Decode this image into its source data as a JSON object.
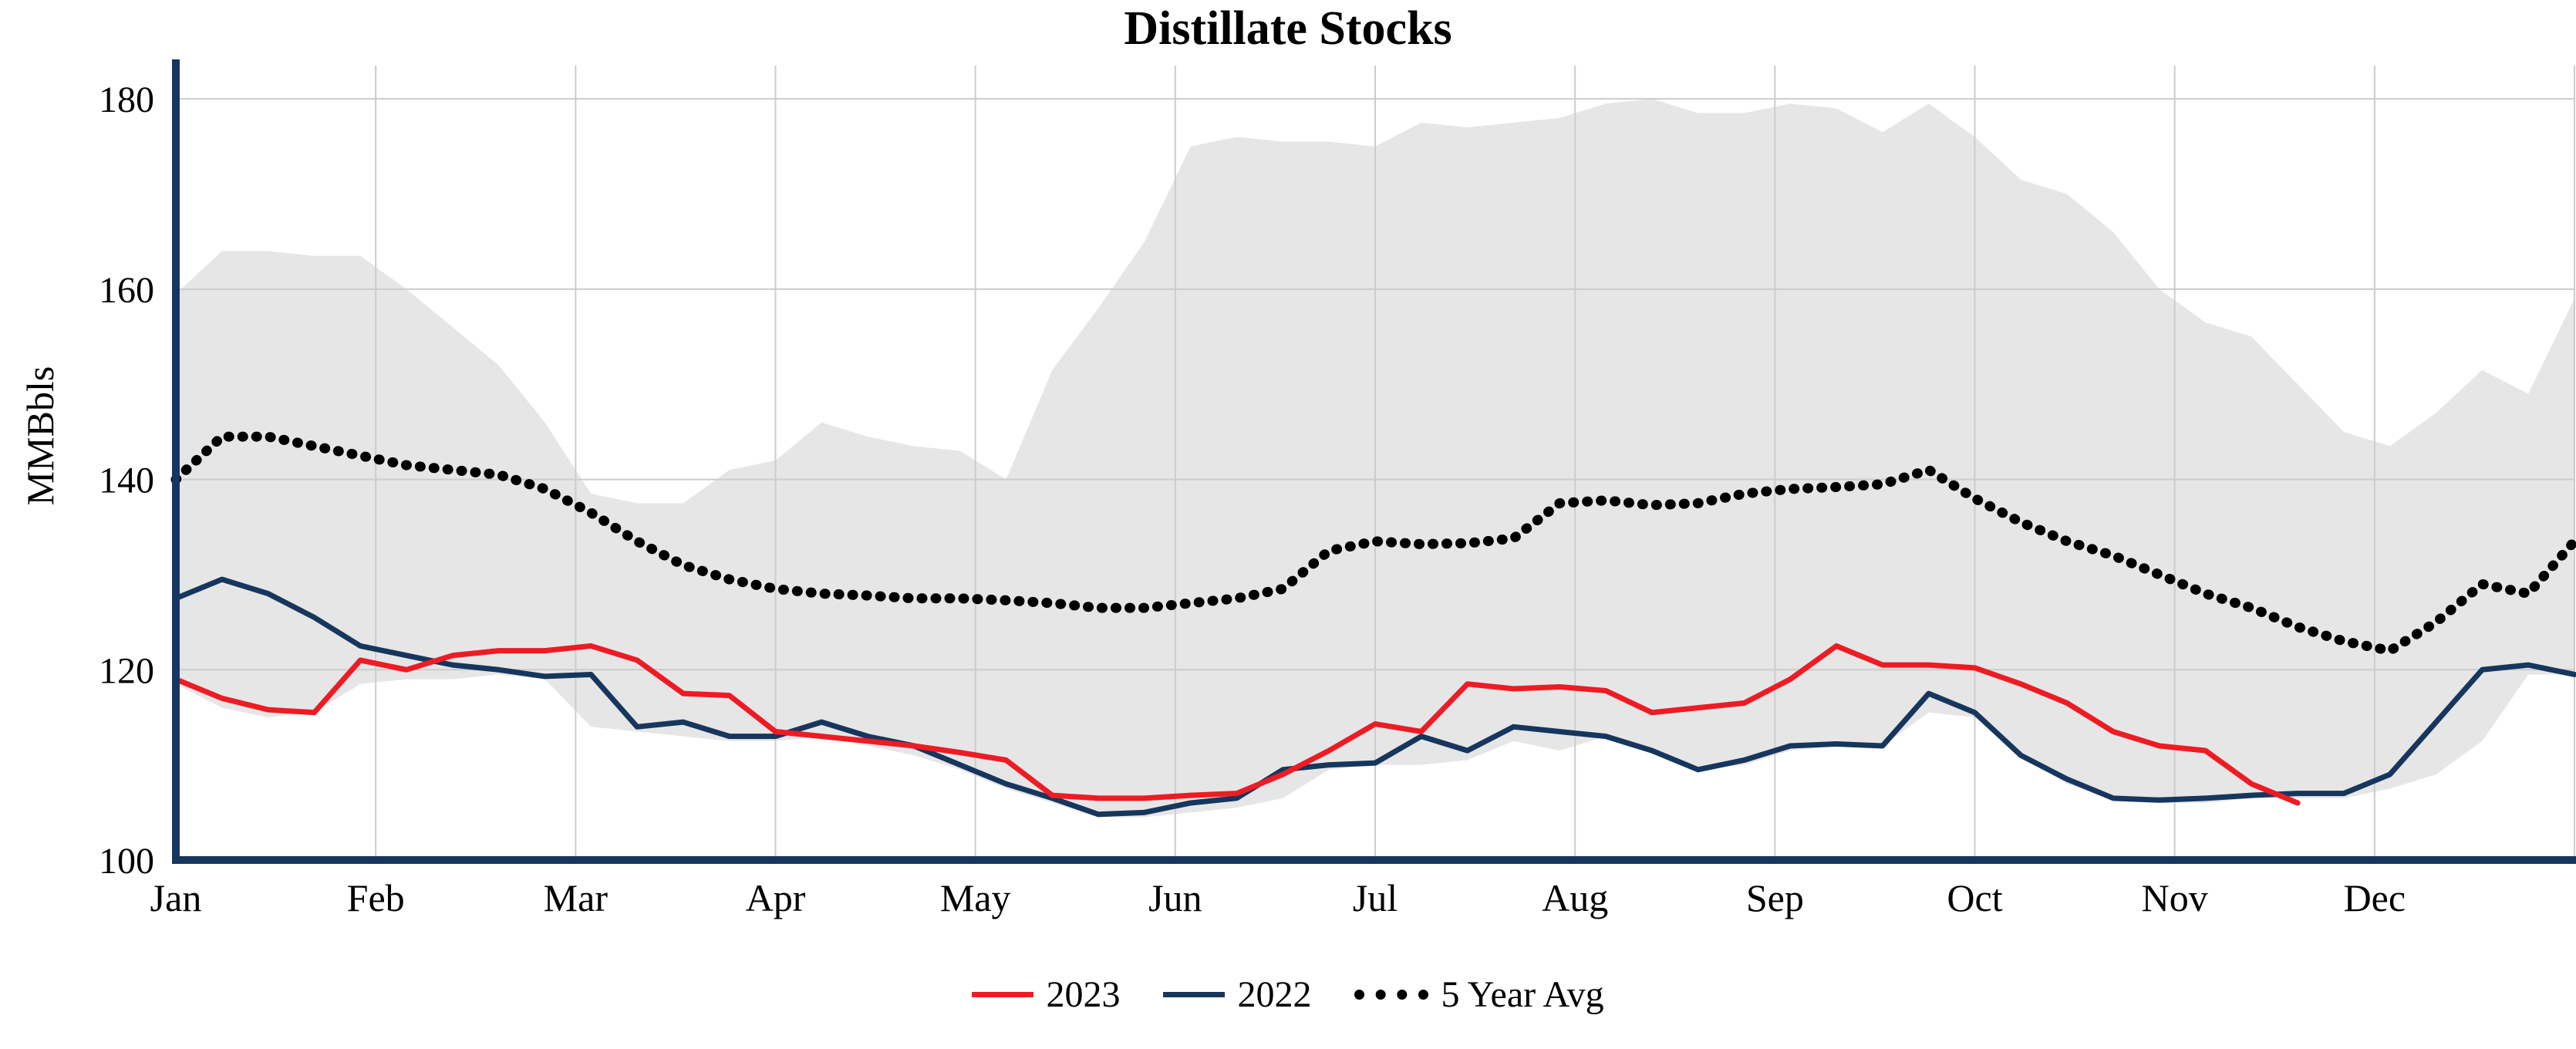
{
  "title": "Distillate Stocks",
  "ylabel": "MMBbls",
  "colors": {
    "red": "#ed1c24",
    "navy": "#17365d",
    "black": "#000000",
    "band_fill": "#e6e6e6",
    "grid": "#cccccc",
    "axis": "#17365d"
  },
  "legend": {
    "items": [
      {
        "label": "2023",
        "color": "#ed1c24",
        "style": "solid"
      },
      {
        "label": "2022",
        "color": "#17365d",
        "style": "solid"
      },
      {
        "label": "5 Year Avg",
        "color": "#000000",
        "style": "dotted"
      }
    ]
  },
  "chart_data": {
    "type": "line",
    "title": "Distillate Stocks",
    "ylabel": "MMBbls",
    "x_unit": "weekly index, Jan = 0, one year = 52",
    "x_max": 52,
    "months": [
      "Jan",
      "Feb",
      "Mar",
      "Apr",
      "May",
      "Jun",
      "Jul",
      "Aug",
      "Sep",
      "Oct",
      "Nov",
      "Dec"
    ],
    "yticks": [
      100,
      120,
      140,
      160,
      180
    ],
    "ylim": [
      100,
      183.5
    ],
    "grid": true,
    "legend_position": "bottom-center",
    "band": {
      "name": "5 Year Range",
      "fill": "#e6e6e6",
      "upper": [
        159.5,
        164,
        164,
        163.5,
        163.5,
        160,
        156,
        152,
        146,
        138.5,
        137.5,
        137.5,
        141,
        142,
        146,
        144.5,
        143.5,
        143,
        140,
        151.5,
        158,
        165,
        175,
        176,
        175.5,
        175.5,
        175,
        177.5,
        177,
        177.5,
        178,
        179.5,
        180,
        178.5,
        178.5,
        179.5,
        179,
        176.5,
        179.5,
        176,
        171.5,
        170,
        166,
        160,
        156.5,
        155,
        150,
        145,
        143.5,
        147,
        151.5,
        149,
        159
      ],
      "lower": [
        118.5,
        116,
        115,
        115.5,
        118.5,
        119,
        119,
        119.5,
        119,
        114,
        113.5,
        113,
        112.5,
        112.5,
        113,
        112,
        111,
        109.5,
        107.5,
        106,
        104.5,
        104.5,
        105,
        105.5,
        106.5,
        109.5,
        110,
        110,
        110.5,
        112.5,
        111.5,
        113,
        111.5,
        109.5,
        110,
        111.5,
        112,
        112,
        115.5,
        115,
        111,
        108,
        106.5,
        106,
        106,
        106.5,
        106.5,
        106.5,
        107.5,
        109,
        112.5,
        119.5,
        119.5
      ]
    },
    "series": [
      {
        "name": "2023",
        "color": "#ed1c24",
        "dash": "solid",
        "width": 7,
        "values": [
          119,
          117,
          115.8,
          115.5,
          121,
          120,
          121.5,
          122,
          122,
          122.5,
          121,
          117.5,
          117.3,
          113.5,
          113,
          112.5,
          112,
          111.3,
          110.5,
          106.8,
          106.5,
          106.5,
          106.8,
          107,
          109,
          111.5,
          114.3,
          113.5,
          118.5,
          118,
          118.2,
          117.8,
          115.5,
          116,
          116.5,
          119,
          122.5,
          120.5,
          120.5,
          120.2,
          118.5,
          116.5,
          113.5,
          112,
          111.5,
          108,
          106
        ]
      },
      {
        "name": "2022",
        "color": "#17365d",
        "dash": "solid",
        "width": 7,
        "values": [
          127.5,
          129.5,
          128,
          125.5,
          122.5,
          121.5,
          120.5,
          120,
          119.3,
          119.5,
          114,
          114.5,
          113,
          113,
          114.5,
          113,
          112,
          110,
          108,
          106.5,
          104.8,
          105,
          106,
          106.5,
          109.5,
          110,
          110.2,
          113,
          111.5,
          114,
          113.5,
          113,
          111.5,
          109.5,
          110.5,
          112,
          112.2,
          112,
          117.5,
          115.5,
          111,
          108.5,
          106.5,
          106.3,
          106.5,
          106.8,
          107,
          107,
          109,
          114.5,
          120,
          120.5,
          119.5
        ]
      },
      {
        "name": "5 Year Avg",
        "color": "#000000",
        "dash": "dotted",
        "width": 13,
        "values": [
          140,
          144.5,
          144.5,
          143.5,
          142.5,
          141.5,
          141,
          140.5,
          139,
          136.5,
          133.5,
          131,
          129.5,
          128.5,
          128,
          127.8,
          127.5,
          127.5,
          127.3,
          127,
          126.5,
          126.5,
          127,
          127.5,
          128.5,
          132.5,
          133.5,
          133.2,
          133.3,
          133.8,
          137.5,
          137.8,
          137.3,
          137.5,
          138.5,
          139,
          139.2,
          139.5,
          141,
          138,
          135.5,
          133.5,
          132,
          130,
          128,
          126.5,
          124.5,
          123,
          122,
          125,
          129,
          128,
          133.5
        ]
      }
    ]
  }
}
